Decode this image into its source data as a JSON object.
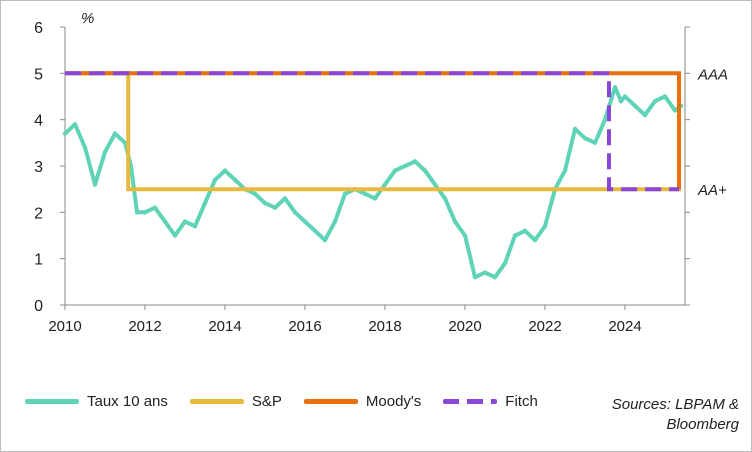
{
  "chart_data": {
    "type": "line",
    "ylabel": "%",
    "ylim": [
      0,
      6
    ],
    "xlim": [
      2010,
      2025.5
    ],
    "x_ticks": [
      "2010",
      "2012",
      "2014",
      "2016",
      "2018",
      "2020",
      "2022",
      "2024"
    ],
    "y_ticks": [
      "0",
      "1",
      "2",
      "3",
      "4",
      "5",
      "6"
    ],
    "right_axis_labels": [
      {
        "label": "AAA",
        "y": 5
      },
      {
        "label": "AA+",
        "y": 2.5
      }
    ],
    "grid": false,
    "legend_position": "bottom",
    "colors": {
      "taux": "#5ed3b7",
      "sp": "#e6b93f",
      "moodys": "#ea6f0f",
      "fitch": "#8a46d6"
    },
    "series": [
      {
        "name": "Taux 10 ans",
        "x": [
          2010.0,
          2010.25,
          2010.5,
          2010.75,
          2011.0,
          2011.25,
          2011.5,
          2011.65,
          2011.8,
          2012.0,
          2012.25,
          2012.5,
          2012.75,
          2013.0,
          2013.25,
          2013.5,
          2013.75,
          2014.0,
          2014.25,
          2014.5,
          2014.75,
          2015.0,
          2015.25,
          2015.5,
          2015.75,
          2016.0,
          2016.25,
          2016.5,
          2016.75,
          2017.0,
          2017.25,
          2017.5,
          2017.75,
          2018.0,
          2018.25,
          2018.5,
          2018.75,
          2019.0,
          2019.25,
          2019.5,
          2019.75,
          2020.0,
          2020.25,
          2020.5,
          2020.75,
          2021.0,
          2021.25,
          2021.5,
          2021.75,
          2022.0,
          2022.25,
          2022.5,
          2022.75,
          2023.0,
          2023.25,
          2023.5,
          2023.75,
          2023.9,
          2024.0,
          2024.25,
          2024.5,
          2024.75,
          2025.0,
          2025.25,
          2025.4
        ],
        "values": [
          3.7,
          3.9,
          3.4,
          2.6,
          3.3,
          3.7,
          3.5,
          3.0,
          2.0,
          2.0,
          2.1,
          1.8,
          1.5,
          1.8,
          1.7,
          2.2,
          2.7,
          2.9,
          2.7,
          2.5,
          2.4,
          2.2,
          2.1,
          2.3,
          2.0,
          1.8,
          1.6,
          1.4,
          1.8,
          2.4,
          2.5,
          2.4,
          2.3,
          2.6,
          2.9,
          3.0,
          3.1,
          2.9,
          2.6,
          2.3,
          1.8,
          1.5,
          0.6,
          0.7,
          0.6,
          0.9,
          1.5,
          1.6,
          1.4,
          1.7,
          2.5,
          2.9,
          3.8,
          3.6,
          3.5,
          4.0,
          4.7,
          4.4,
          4.5,
          4.3,
          4.1,
          4.4,
          4.5,
          4.2,
          4.3
        ]
      },
      {
        "name": "S&P",
        "x": [
          2010.0,
          2011.58,
          2011.58,
          2025.35,
          2025.35
        ],
        "values": [
          5.0,
          5.0,
          2.5,
          2.5,
          5.0
        ]
      },
      {
        "name": "Moody's",
        "x": [
          2010.0,
          2025.35,
          2025.35
        ],
        "values": [
          5.0,
          5.0,
          2.5
        ]
      },
      {
        "name": "Fitch",
        "x": [
          2010.0,
          2023.6,
          2023.6,
          2025.35
        ],
        "values": [
          5.0,
          5.0,
          2.5,
          2.5
        ]
      }
    ]
  },
  "source_line1": "Sources: LBPAM &",
  "source_line2": "Bloomberg"
}
